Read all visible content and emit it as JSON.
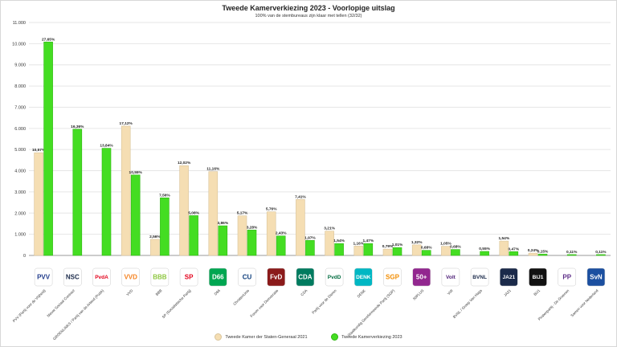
{
  "chart_data": {
    "type": "bar",
    "title": "Tweede Kamerverkiezing 2023 - Voorlopige uitslag",
    "subtitle": "100% van de stembureaus zijn klaar met tellen (32/32)",
    "ylim": [
      0,
      11000
    ],
    "yticks": [
      "0",
      "1.000",
      "2.000",
      "3.000",
      "4.000",
      "5.000",
      "6.000",
      "7.000",
      "8.000",
      "9.000",
      "10.000",
      "11.000"
    ],
    "colors": {
      "s2021": "#f5deb3",
      "s2021_edge": "#d9c49a",
      "s2023": "#44dd22",
      "s2023_edge": "#2fb812",
      "grid": "#e6e6e6",
      "axis": "#999999"
    },
    "categories": [
      {
        "name": "PVV (Partij voor de Vrijheid)",
        "logo": "PVV",
        "logo_color": "#1f3a8a",
        "logo_bg": "#ffffff"
      },
      {
        "name": "Nieuw Sociaal Contract",
        "logo": "NSC",
        "logo_color": "#1b2a4a",
        "logo_bg": "#ffffff"
      },
      {
        "name": "GROENLINKS / Partij van de Arbeid (PvdA)",
        "logo": "PvdA",
        "logo_color": "#e2001a",
        "logo_bg": "#ffffff"
      },
      {
        "name": "VVD",
        "logo": "VVD",
        "logo_color": "#f58220",
        "logo_bg": "#ffffff"
      },
      {
        "name": "BBB",
        "logo": "BBB",
        "logo_color": "#8dc63f",
        "logo_bg": "#ffffff"
      },
      {
        "name": "SP (Socialistische Partij)",
        "logo": "SP",
        "logo_color": "#e3001b",
        "logo_bg": "#ffffff"
      },
      {
        "name": "D66",
        "logo": "D66",
        "logo_color": "#ffffff",
        "logo_bg": "#00a651"
      },
      {
        "name": "ChristenUnie",
        "logo": "CU",
        "logo_color": "#0a3b7a",
        "logo_bg": "#ffffff"
      },
      {
        "name": "Forum voor Democratie",
        "logo": "FvD",
        "logo_color": "#ffffff",
        "logo_bg": "#8b1a1a"
      },
      {
        "name": "CDA",
        "logo": "CDA",
        "logo_color": "#ffffff",
        "logo_bg": "#007b5f"
      },
      {
        "name": "Partij voor de Dieren",
        "logo": "PvdD",
        "logo_color": "#006b3f",
        "logo_bg": "#ffffff"
      },
      {
        "name": "DENK",
        "logo": "DENK",
        "logo_color": "#ffffff",
        "logo_bg": "#00b7c3"
      },
      {
        "name": "Staatkundig Gereformeerde Partij (SGP)",
        "logo": "SGP",
        "logo_color": "#f28c00",
        "logo_bg": "#ffffff"
      },
      {
        "name": "50PLUS",
        "logo": "50+",
        "logo_color": "#ffffff",
        "logo_bg": "#92278f"
      },
      {
        "name": "Volt",
        "logo": "Volt",
        "logo_color": "#502379",
        "logo_bg": "#ffffff"
      },
      {
        "name": "BVNL / Groep Van Haga",
        "logo": "BVNL",
        "logo_color": "#1b2a4a",
        "logo_bg": "#ffffff"
      },
      {
        "name": "JA21",
        "logo": "JA21",
        "logo_color": "#ffffff",
        "logo_bg": "#1b2a4a"
      },
      {
        "name": "BIJ1",
        "logo": "BIJ1",
        "logo_color": "#ffffff",
        "logo_bg": "#111111"
      },
      {
        "name": "Piratenpartij - De Groenen",
        "logo": "PP",
        "logo_color": "#5b2a86",
        "logo_bg": "#ffffff"
      },
      {
        "name": "Samen voor Nederland",
        "logo": "SvN",
        "logo_color": "#ffffff",
        "logo_bg": "#1b4fa0"
      }
    ],
    "series": [
      {
        "name": "Tweede Kamer der Staten-Generaal 2021",
        "values": [
          4850,
          null,
          null,
          6110,
          760,
          4240,
          3960,
          1870,
          2060,
          2640,
          1150,
          440,
          300,
          500,
          430,
          null,
          680,
          110,
          null,
          null
        ],
        "labels": [
          "10,57%",
          "",
          "",
          "17,12%",
          "2,56%",
          "12,02%",
          "11,16%",
          "5,17%",
          "5,76%",
          "7,41%",
          "3,21%",
          "1,16%",
          "0,79%",
          "1,32%",
          "1,05%",
          "",
          "1,54%",
          "0,24%",
          "",
          ""
        ]
      },
      {
        "name": "Tweede Kamerverkiezing 2023",
        "values": [
          10080,
          5960,
          5060,
          3800,
          2720,
          1880,
          1400,
          1200,
          920,
          710,
          560,
          560,
          370,
          240,
          280,
          190,
          180,
          60,
          40,
          40
        ],
        "labels": [
          "27,65%",
          "16,36%",
          "13,84%",
          "10,55%",
          "7,56%",
          "5,08%",
          "3,86%",
          "3,28%",
          "2,43%",
          "1,97%",
          "1,54%",
          "1,47%",
          "1,01%",
          "0,68%",
          "0,68%",
          "0,55%",
          "0,47%",
          "0,15%",
          "0,11%",
          "0,11%"
        ]
      }
    ],
    "legend": {
      "position": "bottom"
    }
  }
}
